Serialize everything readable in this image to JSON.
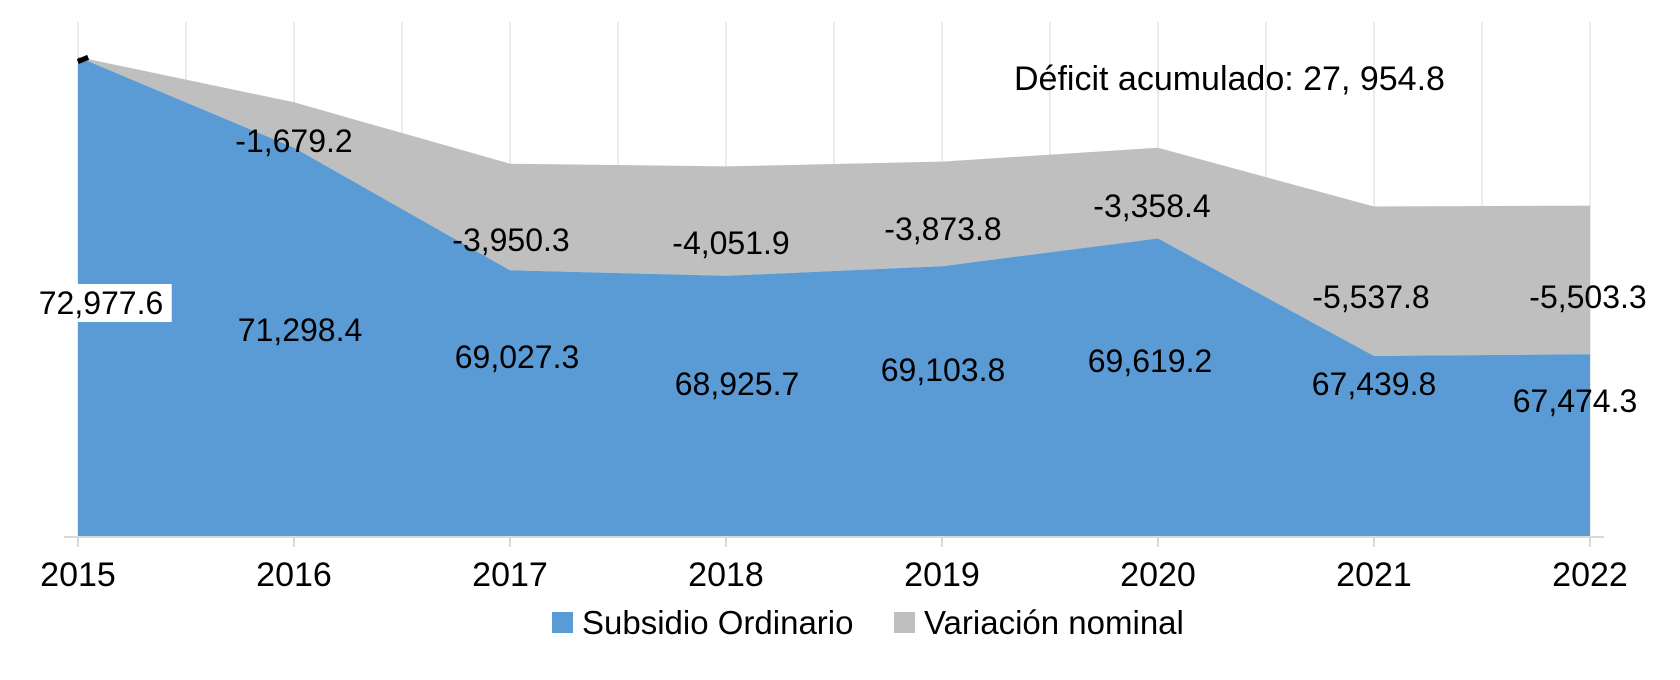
{
  "chart_data": {
    "type": "area",
    "stacked": true,
    "categories": [
      "2015",
      "2016",
      "2017",
      "2018",
      "2019",
      "2020",
      "2021",
      "2022"
    ],
    "series": [
      {
        "name": "Subsidio Ordinario",
        "color": "#5B9BD5",
        "values": [
          72977.6,
          71298.4,
          69027.3,
          68925.7,
          69103.8,
          69619.2,
          67439.8,
          67474.3
        ],
        "labels": [
          "72,977.6",
          "71,298.4",
          "69,027.3",
          "68,925.7",
          "69,103.8",
          "69,619.2",
          "67,439.8",
          "67,474.3"
        ]
      },
      {
        "name": "Variación nominal",
        "color": "#BFBFBF",
        "values": [
          0,
          -1679.2,
          -3950.3,
          -4051.9,
          -3873.8,
          -3358.4,
          -5537.8,
          -5503.3
        ],
        "labels": [
          "-",
          "-1,679.2",
          "-3,950.3",
          "-4,051.9",
          "-3,873.8",
          "-3,358.4",
          "-5,537.8",
          "-5,503.3"
        ]
      }
    ],
    "annotation": "Déficit acumulado: 27, 954.8",
    "xlabel": "",
    "ylabel": "",
    "ylim": [
      64000,
      74000
    ],
    "grid": "vertical",
    "legend_position": "bottom"
  },
  "colors": {
    "blue": "#5B9BD5",
    "gray": "#BFBFBF",
    "gridline": "#ECECEC",
    "axis": "#D9D9D9",
    "text": "#000000",
    "background": "#FFFFFF"
  }
}
